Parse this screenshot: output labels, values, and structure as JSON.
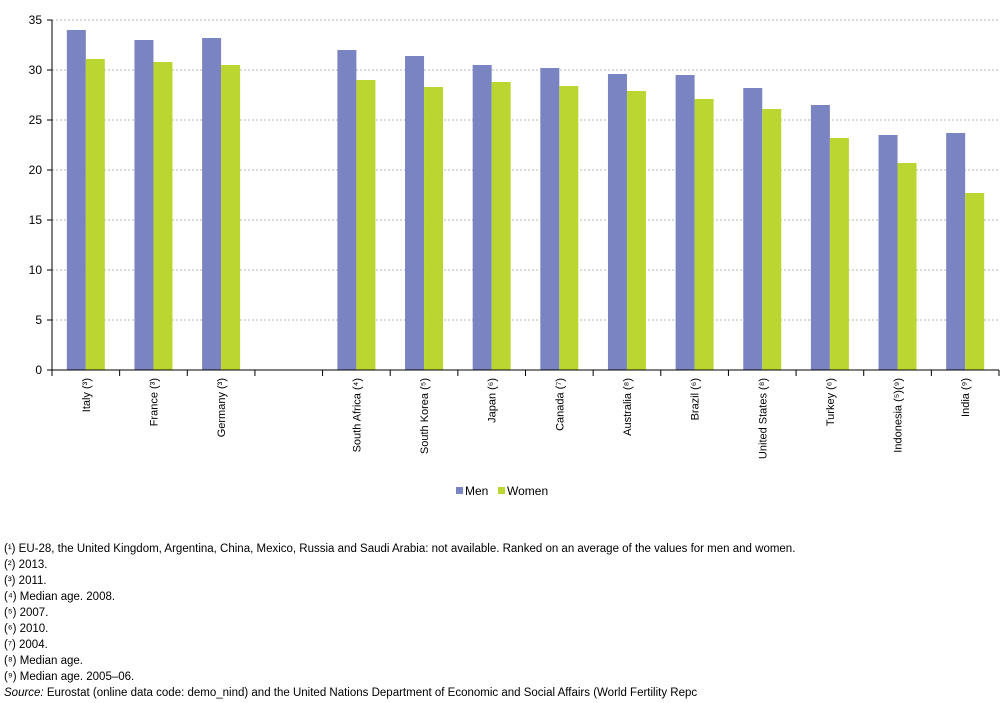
{
  "chart_data": {
    "type": "bar",
    "categories": [
      "Italy (³)",
      "France (³)",
      "Germany (³)",
      "",
      "South Africa (⁴)",
      "South Korea (⁵)",
      "Japan (⁶)",
      "Canada (⁷)",
      "Australia (⁸)",
      "Brazil (⁶)",
      "United States (⁸)",
      "Turkey (⁶)",
      "Indonesia (⁵)(⁹)",
      "India (⁹)"
    ],
    "series": [
      {
        "name": "Men",
        "color": "#7b84c3",
        "values": [
          34.0,
          33.0,
          33.2,
          null,
          32.0,
          31.4,
          30.5,
          30.2,
          29.6,
          29.5,
          28.2,
          26.5,
          23.5,
          23.7
        ]
      },
      {
        "name": "Women",
        "color": "#bcd631",
        "values": [
          31.1,
          30.8,
          30.5,
          null,
          29.0,
          28.3,
          28.8,
          28.4,
          27.9,
          27.1,
          26.1,
          23.2,
          20.7,
          17.7
        ]
      }
    ],
    "yticks": [
      "0",
      "5",
      "10",
      "15",
      "20",
      "25",
      "30",
      "35"
    ],
    "ylim": [
      0,
      35
    ],
    "grid": true,
    "legend": "bottom-center",
    "title": "",
    "xlabel": "",
    "ylabel": ""
  },
  "footnotes": [
    "(¹) EU-28, the United Kingdom, Argentina, China, Mexico, Russia and Saudi Arabia: not available. Ranked on an average of the values for men and women.",
    "(²) 2013.",
    "(³) 2011.",
    "(⁴) Median age. 2008.",
    "(⁵) 2007.",
    "(⁶) 2010.",
    "(⁷) 2004.",
    "(⁸) Median age.",
    "(⁹) Median age. 2005–06."
  ],
  "source": {
    "label": "Source:",
    "text": "Eurostat (online data code: demo_nind) and the United Nations Department of Economic and Social Affairs (World Fertility Repc"
  }
}
